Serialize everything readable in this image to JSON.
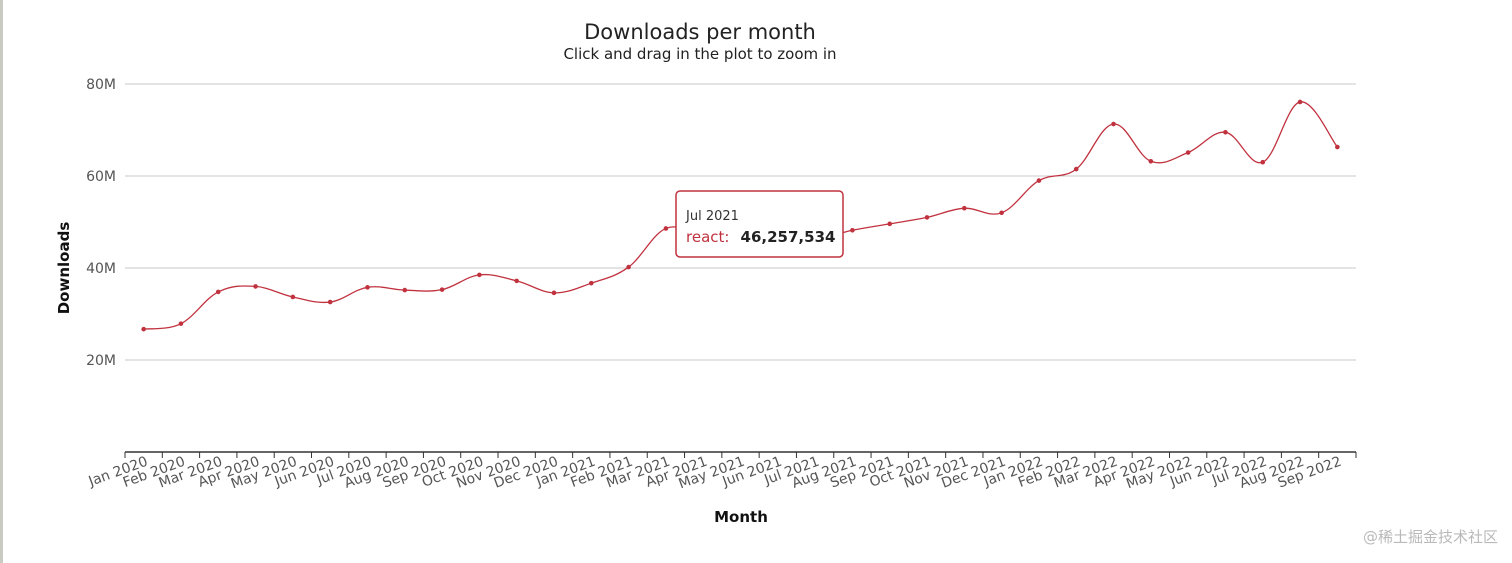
{
  "chart_data": {
    "type": "line",
    "title": "Downloads per month",
    "subtitle": "Click and drag in the plot to zoom in",
    "xlabel": "Month",
    "ylabel": "Downloads",
    "ylim": [
      0,
      80000000
    ],
    "y_ticks": [
      "20M",
      "40M",
      "60M",
      "80M"
    ],
    "grid": "horizontal",
    "categories": [
      "Jan 2020",
      "Feb 2020",
      "Mar 2020",
      "Apr 2020",
      "May 2020",
      "Jun 2020",
      "Jul 2020",
      "Aug 2020",
      "Sep 2020",
      "Oct 2020",
      "Nov 2020",
      "Dec 2020",
      "Jan 2021",
      "Feb 2021",
      "Mar 2021",
      "Apr 2021",
      "May 2021",
      "Jun 2021",
      "Jul 2021",
      "Aug 2021",
      "Sep 2021",
      "Oct 2021",
      "Nov 2021",
      "Dec 2021",
      "Jan 2022",
      "Feb 2022",
      "Mar 2022",
      "Apr 2022",
      "May 2022",
      "Jun 2022",
      "Jul 2022",
      "Aug 2022",
      "Sep 2022"
    ],
    "series": [
      {
        "name": "react",
        "color": "#c1323f",
        "values": [
          26700000,
          27900000,
          34800000,
          36000000,
          33700000,
          32600000,
          35800000,
          35200000,
          35300000,
          38500000,
          37200000,
          34600000,
          36700000,
          40200000,
          48600000,
          47000000,
          46000000,
          46100000,
          46257534,
          48200000,
          49600000,
          51000000,
          53000000,
          52000000,
          59000000,
          61500000,
          71300000,
          63200000,
          65100000,
          69500000,
          63000000,
          76100000,
          66300000
        ]
      }
    ],
    "tooltip": {
      "header": "Jul 2021",
      "series_label": "react:",
      "value_text": "46,257,534"
    }
  },
  "watermark": "@稀土掘金技术社区"
}
